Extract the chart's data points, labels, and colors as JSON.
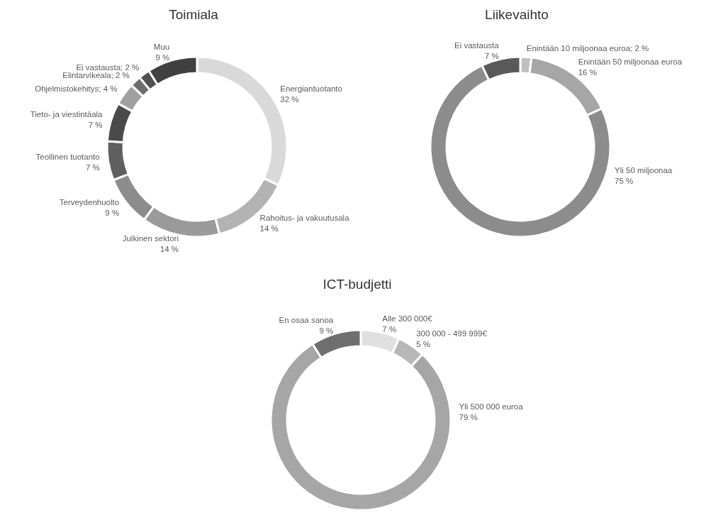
{
  "chart_data": [
    {
      "type": "donut",
      "title": "Toimiala",
      "categories": [
        "Energiantuotanto",
        "Rahoitus- ja vakuutusala",
        "Julkinen sektori",
        "Terveydenhuolto",
        "Teollinen tuotanto",
        "Tieto- ja viestintäala",
        "Ohjelmistokehitys",
        "Elintarvikeala",
        "Ei vastausta",
        "Muu"
      ],
      "values": [
        32,
        14,
        14,
        9,
        7,
        7,
        4,
        2,
        2,
        9
      ],
      "value_labels": [
        "32 %",
        "14 %",
        "14 %",
        "9 %",
        "7 %",
        "7 %",
        "4 %",
        "2 %",
        "2 %",
        "9 %"
      ],
      "colors": [
        "#d9d9d9",
        "#b3b3b3",
        "#9a9a9a",
        "#8c8c8c",
        "#5f5f5f",
        "#4a4a4a",
        "#a0a0a0",
        "#6e6e6e",
        "#505050",
        "#404040"
      ]
    },
    {
      "type": "donut",
      "title": "Liikevaihto",
      "categories": [
        "Enintään 10 miljoonaa euroa",
        "Enintään 50 miljoonaa euroa",
        "Yli 50 miljoonaa",
        "Ei vastausta"
      ],
      "values": [
        2,
        16,
        75,
        7
      ],
      "value_labels": [
        "2 %",
        "16 %",
        "75 %",
        "7 %"
      ],
      "colors": [
        "#c0c0c0",
        "#a6a6a6",
        "#8c8c8c",
        "#595959"
      ]
    },
    {
      "type": "donut",
      "title": "ICT-budjetti",
      "categories": [
        "Alle 300 000€",
        "300 000 - 499 999€",
        "Yli 500 000 euroa",
        "En osaa sanoa"
      ],
      "values": [
        7,
        5,
        79,
        9
      ],
      "value_labels": [
        "7 %",
        "5 %",
        "79 %",
        "9 %"
      ],
      "colors": [
        "#e0e0e0",
        "#b8b8b8",
        "#a6a6a6",
        "#6e6e6e"
      ]
    }
  ]
}
